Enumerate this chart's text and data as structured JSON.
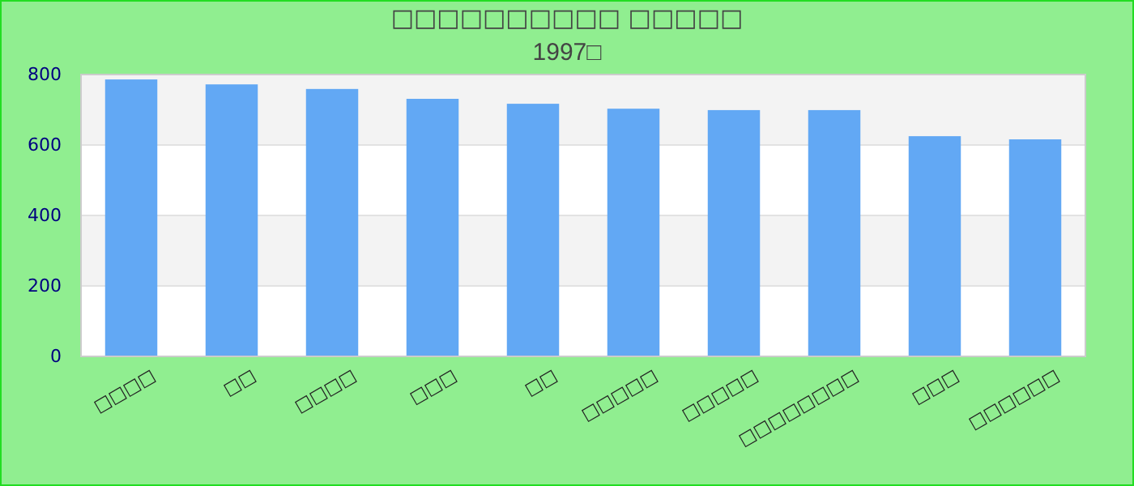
{
  "chart_data": {
    "type": "bar",
    "title": "□□□□□□□□□□ □□□□□",
    "subtitle": "1997□",
    "categories": [
      "□□□□",
      "□□",
      "□□□□",
      "□□□",
      "□□",
      "□□□□□",
      "□□□□□",
      "□□□□□□□□",
      "□□□",
      "□□□□□□"
    ],
    "values": [
      786,
      772,
      759,
      731,
      717,
      703,
      699,
      699,
      625,
      616
    ],
    "color": "#62a8f4",
    "ylim": [
      0,
      800
    ],
    "yticks": [
      0,
      200,
      400,
      600,
      800
    ],
    "grid": "y"
  }
}
